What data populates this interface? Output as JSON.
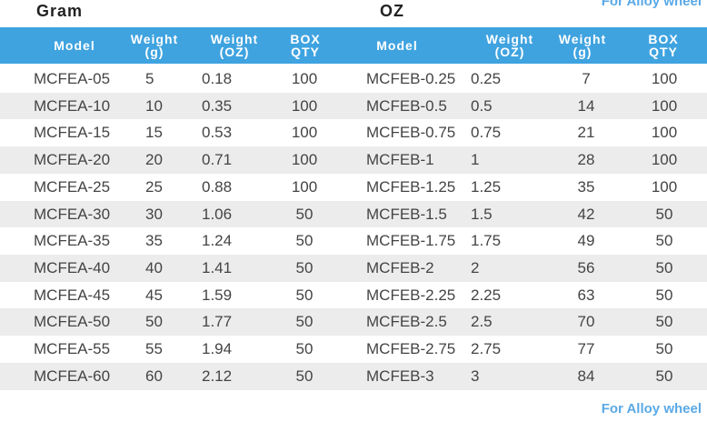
{
  "top_left_label": "Gram",
  "top_right_label": "OZ",
  "top_note": "For Alloy wheel",
  "bottom_note": "For Alloy wheel",
  "table": {
    "header": [
      [
        "Model"
      ],
      [
        "Weight",
        "(g)"
      ],
      [
        "Weight",
        "(OZ)"
      ],
      [
        "BOX",
        "QTY"
      ],
      [
        "Model"
      ],
      [
        "Weight",
        "(OZ)"
      ],
      [
        "Weight",
        "(g)"
      ],
      [
        "BOX",
        "QTY"
      ]
    ],
    "rows": [
      [
        "MCFEA-05",
        "5",
        "0.18",
        "100",
        "MCFEB-0.25",
        "0.25",
        "7",
        "100"
      ],
      [
        "MCFEA-10",
        "10",
        "0.35",
        "100",
        "MCFEB-0.5",
        "0.5",
        "14",
        "100"
      ],
      [
        "MCFEA-15",
        "15",
        "0.53",
        "100",
        "MCFEB-0.75",
        "0.75",
        "21",
        "100"
      ],
      [
        "MCFEA-20",
        "20",
        "0.71",
        "100",
        "MCFEB-1",
        "1",
        "28",
        "100"
      ],
      [
        "MCFEA-25",
        "25",
        "0.88",
        "100",
        "MCFEB-1.25",
        "1.25",
        "35",
        "100"
      ],
      [
        "MCFEA-30",
        "30",
        "1.06",
        "50",
        "MCFEB-1.5",
        "1.5",
        "42",
        "50"
      ],
      [
        "MCFEA-35",
        "35",
        "1.24",
        "50",
        "MCFEB-1.75",
        "1.75",
        "49",
        "50"
      ],
      [
        "MCFEA-40",
        "40",
        "1.41",
        "50",
        "MCFEB-2",
        "2",
        "56",
        "50"
      ],
      [
        "MCFEA-45",
        "45",
        "1.59",
        "50",
        "MCFEB-2.25",
        "2.25",
        "63",
        "50"
      ],
      [
        "MCFEA-50",
        "50",
        "1.77",
        "50",
        "MCFEB-2.5",
        "2.5",
        "70",
        "50"
      ],
      [
        "MCFEA-55",
        "55",
        "1.94",
        "50",
        "MCFEB-2.75",
        "2.75",
        "77",
        "50"
      ],
      [
        "MCFEA-60",
        "60",
        "2.12",
        "50",
        "MCFEB-3",
        "3",
        "84",
        "50"
      ]
    ]
  }
}
